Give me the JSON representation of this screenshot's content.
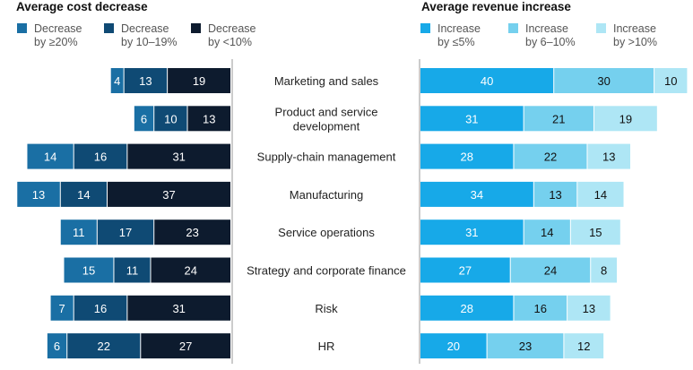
{
  "chart_data": [
    {
      "type": "bar",
      "orientation": "horizontal-stacked",
      "title": "Average cost decrease",
      "legend_position": "top",
      "categories": [
        "Marketing and sales",
        "Product and service development",
        "Supply-chain management",
        "Manufacturing",
        "Service operations",
        "Strategy and corporate finance",
        "Risk",
        "HR"
      ],
      "series": [
        {
          "name": "Decrease by ≥20%",
          "color": "#1a6fa4",
          "values": [
            4,
            6,
            14,
            13,
            11,
            15,
            7,
            6
          ]
        },
        {
          "name": "Decrease by 10–19%",
          "color": "#0f4a74",
          "values": [
            13,
            10,
            16,
            14,
            17,
            11,
            16,
            22
          ]
        },
        {
          "name": "Decrease by <10%",
          "color": "#0d1b2e",
          "values": [
            19,
            13,
            31,
            37,
            23,
            24,
            31,
            27
          ]
        }
      ]
    },
    {
      "type": "bar",
      "orientation": "horizontal-stacked",
      "title": "Average revenue increase",
      "legend_position": "top",
      "categories": [
        "Marketing and sales",
        "Product and service development",
        "Supply-chain management",
        "Manufacturing",
        "Service operations",
        "Strategy and corporate finance",
        "Risk",
        "HR"
      ],
      "series": [
        {
          "name": "Increase by ≤5%",
          "color": "#17a9e8",
          "values": [
            40,
            31,
            28,
            34,
            31,
            27,
            28,
            20
          ]
        },
        {
          "name": "Increase by 6–10%",
          "color": "#75d0ee",
          "values": [
            30,
            21,
            22,
            13,
            14,
            24,
            16,
            23
          ]
        },
        {
          "name": "Increase by >10%",
          "color": "#aee6f5",
          "values": [
            10,
            19,
            13,
            14,
            15,
            8,
            13,
            12
          ]
        }
      ]
    }
  ],
  "category_lines": [
    [
      "Marketing and sales"
    ],
    [
      "Product and service",
      "development"
    ],
    [
      "Supply-chain management"
    ],
    [
      "Manufacturing"
    ],
    [
      "Service operations"
    ],
    [
      "Strategy and corporate finance"
    ],
    [
      "Risk"
    ],
    [
      "HR"
    ]
  ],
  "legend_lines": {
    "cost": [
      [
        "Decrease",
        "by ≥20%"
      ],
      [
        "Decrease",
        "by 10–19%"
      ],
      [
        "Decrease",
        "by <10%"
      ]
    ],
    "revenue": [
      [
        "Increase",
        "by ≤5%"
      ],
      [
        "Increase",
        "by 6–10%"
      ],
      [
        "Increase",
        "by >10%"
      ]
    ]
  },
  "label_colors": {
    "on_dark": "#ffffff",
    "on_light": "#111111"
  },
  "axis_color": "#999999"
}
